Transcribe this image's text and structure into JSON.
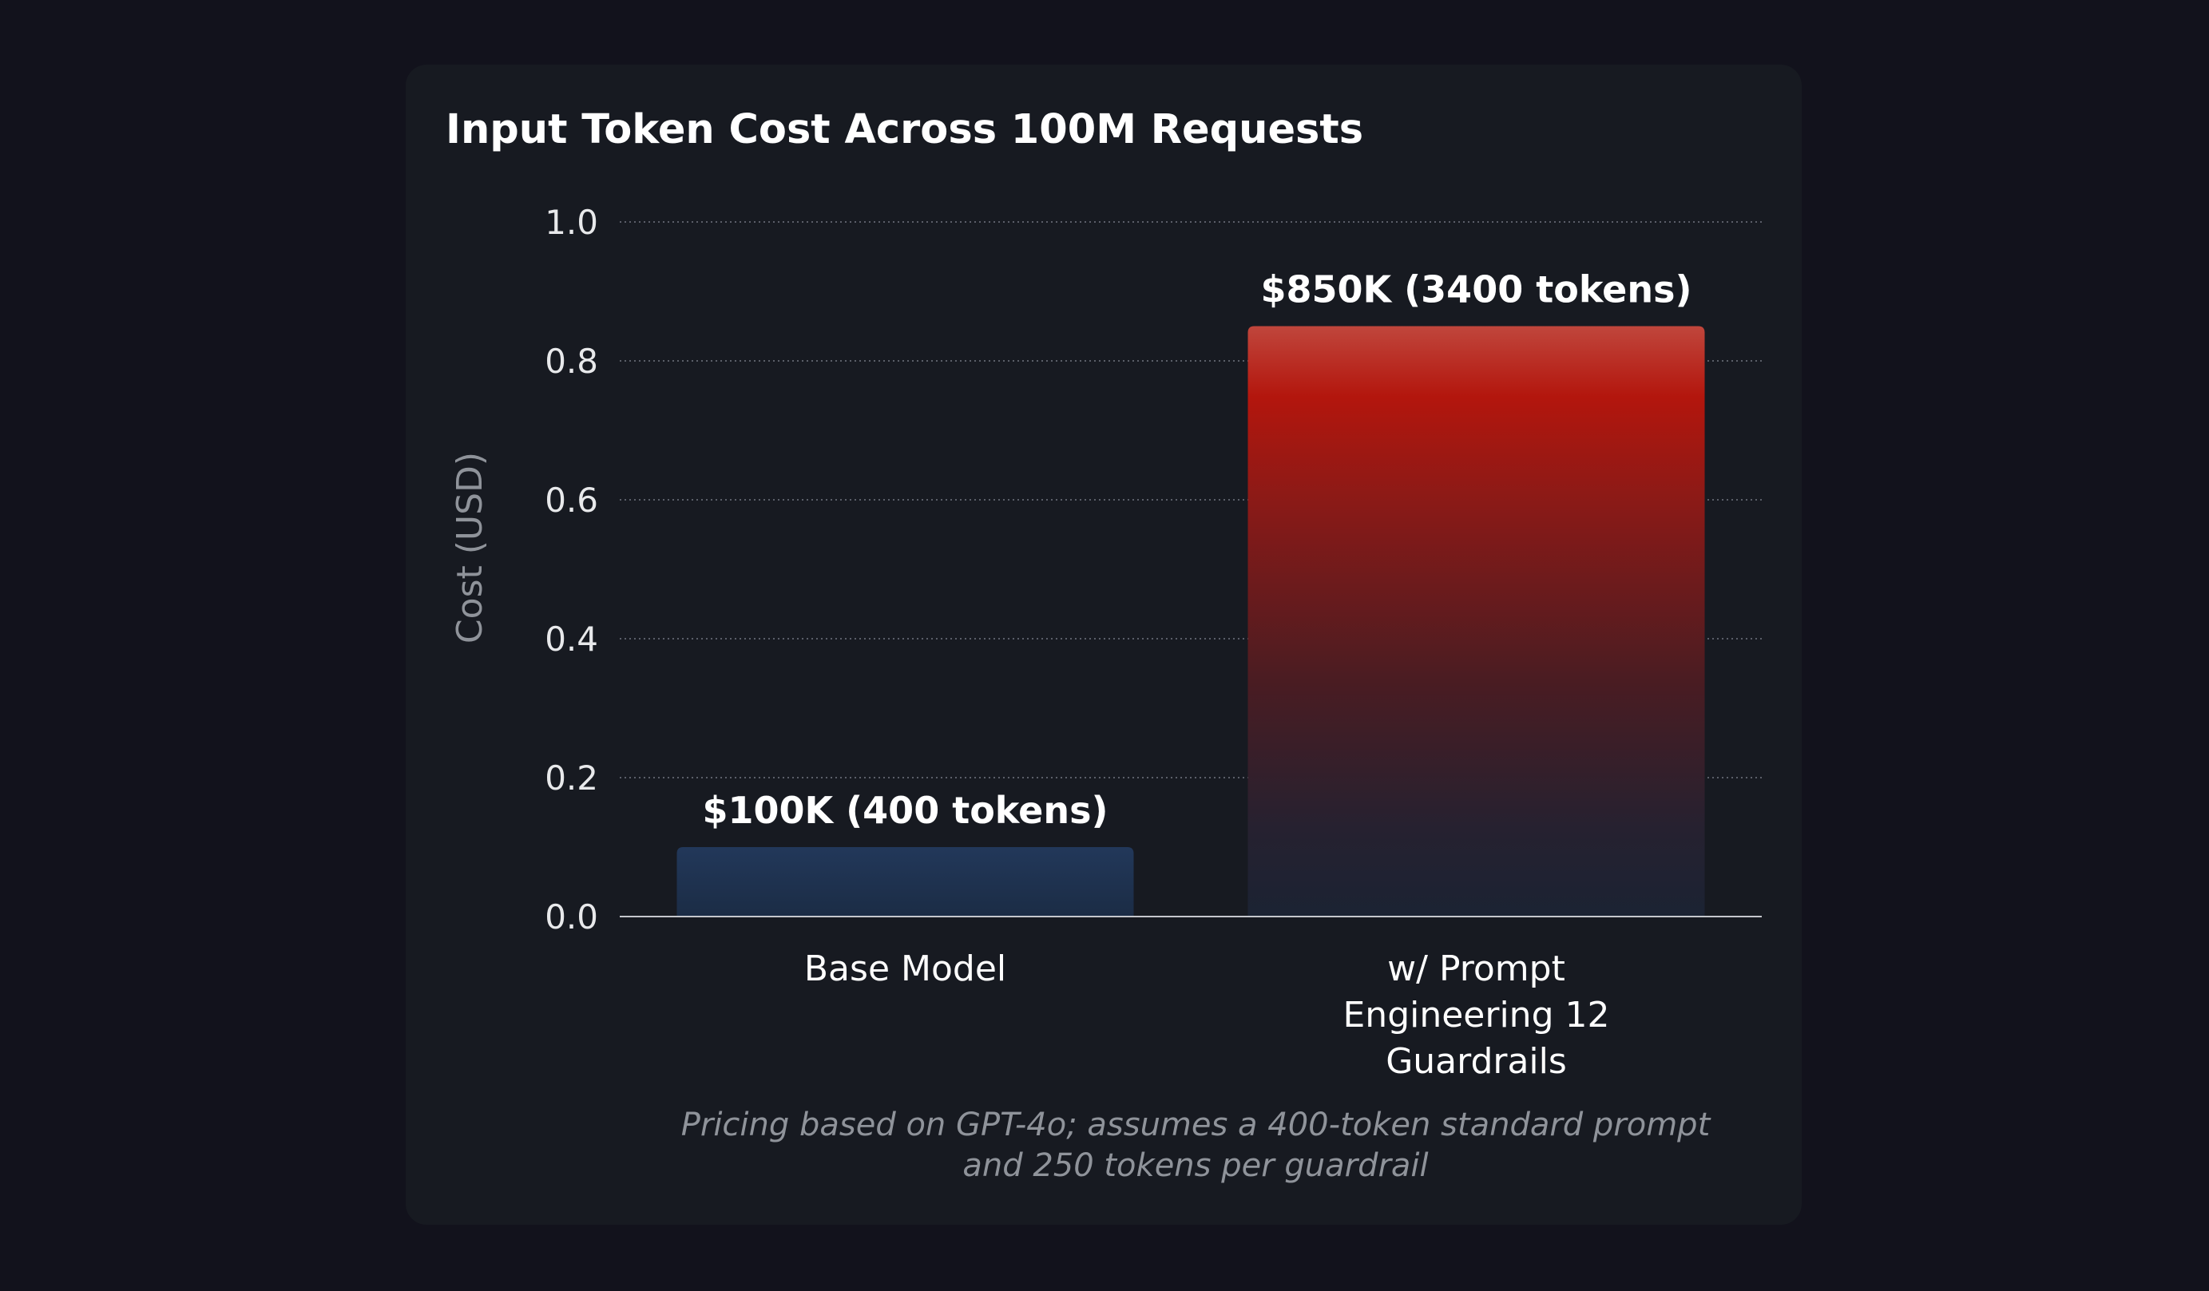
{
  "chart_data": {
    "type": "bar",
    "title": "Input Token Cost Across 100M Requests",
    "xlabel": "",
    "ylabel": "Cost (USD)",
    "ylim": [
      0,
      1.0
    ],
    "yticks": [
      "0.0",
      "0.2",
      "0.4",
      "0.6",
      "0.8",
      "1.0"
    ],
    "categories": [
      [
        "Base Model"
      ],
      [
        "w/ Prompt",
        "Engineering 12",
        "Guardrails"
      ]
    ],
    "values": [
      0.1,
      0.85
    ],
    "data_labels": [
      "$100K (400 tokens)",
      "$850K (3400 tokens)"
    ],
    "grid": "horizontal dotted",
    "caption": [
      "Pricing based on GPT-4o; assumes a 400-token standard prompt",
      "and 250 tokens per guardrail"
    ],
    "colors": {
      "background": "#12121c",
      "panel": "#171a21",
      "bar_base": "#1f3350",
      "bar_prompt_top": "#b3160d",
      "bar_prompt_bottom": "#1b2333",
      "grid": "#5b5f69",
      "axis": "#c5c7cc",
      "text": "#ffffff",
      "muted": "#8f939a"
    }
  }
}
